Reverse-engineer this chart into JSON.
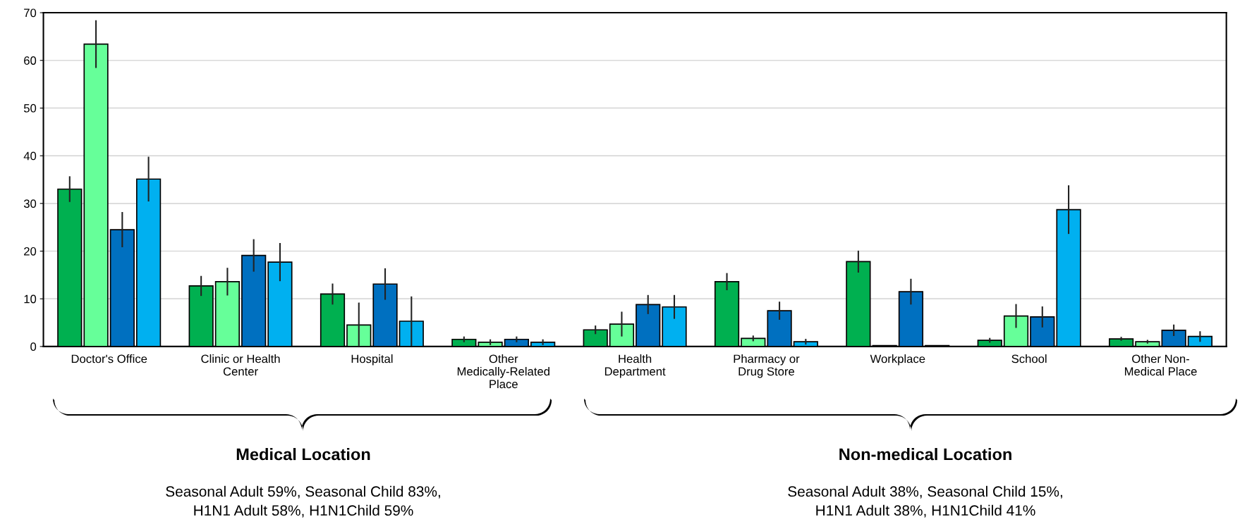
{
  "chart_data": {
    "type": "bar",
    "categories": [
      "Doctor's Office",
      "Clinic or Health\nCenter",
      "Hospital",
      "Other\nMedically-Related\nPlace",
      "Health\nDepartment",
      "Pharmacy or\nDrug Store",
      "Workplace",
      "School",
      "Other Non-\nMedical Place"
    ],
    "series": [
      {
        "color": "#00b050",
        "values": [
          33.0,
          12.7,
          11.0,
          1.5,
          3.5,
          13.6,
          17.8,
          1.3,
          1.6
        ],
        "errors": [
          2.7,
          2.1,
          2.2,
          0.6,
          0.9,
          1.8,
          2.3,
          0.5,
          0.4
        ]
      },
      {
        "color": "#66ff99",
        "values": [
          63.4,
          13.6,
          4.5,
          0.9,
          4.7,
          1.7,
          0.2,
          6.4,
          1.0
        ],
        "errors": [
          5.0,
          2.9,
          4.7,
          0.6,
          2.6,
          0.6,
          null,
          2.5,
          0.4
        ]
      },
      {
        "color": "#0070c0",
        "values": [
          24.5,
          19.1,
          13.1,
          1.5,
          8.8,
          7.5,
          11.5,
          6.2,
          3.4
        ],
        "errors": [
          3.7,
          3.4,
          3.3,
          0.6,
          2.0,
          1.9,
          2.7,
          2.2,
          1.2
        ]
      },
      {
        "color": "#00b0f0",
        "values": [
          35.1,
          17.7,
          5.3,
          0.9,
          8.3,
          1.0,
          0.2,
          28.7,
          2.1
        ],
        "errors": [
          4.7,
          4.0,
          5.2,
          0.6,
          2.5,
          0.6,
          null,
          5.1,
          1.1
        ]
      }
    ],
    "ylim": [
      0,
      70
    ],
    "yticks": [
      0,
      10,
      20,
      30,
      40,
      50,
      60,
      70
    ],
    "grid": "y",
    "legend": false,
    "annotations": [
      "Medical Location",
      "Seasonal Adult 59%, Seasonal Child 83%,\nH1N1 Adult 58%, H1N1Child 59%",
      "Non-medical Location",
      "Seasonal Adult 38%, Seasonal Child 15%,\nH1N1 Adult 38%, H1N1Child 41%"
    ]
  }
}
